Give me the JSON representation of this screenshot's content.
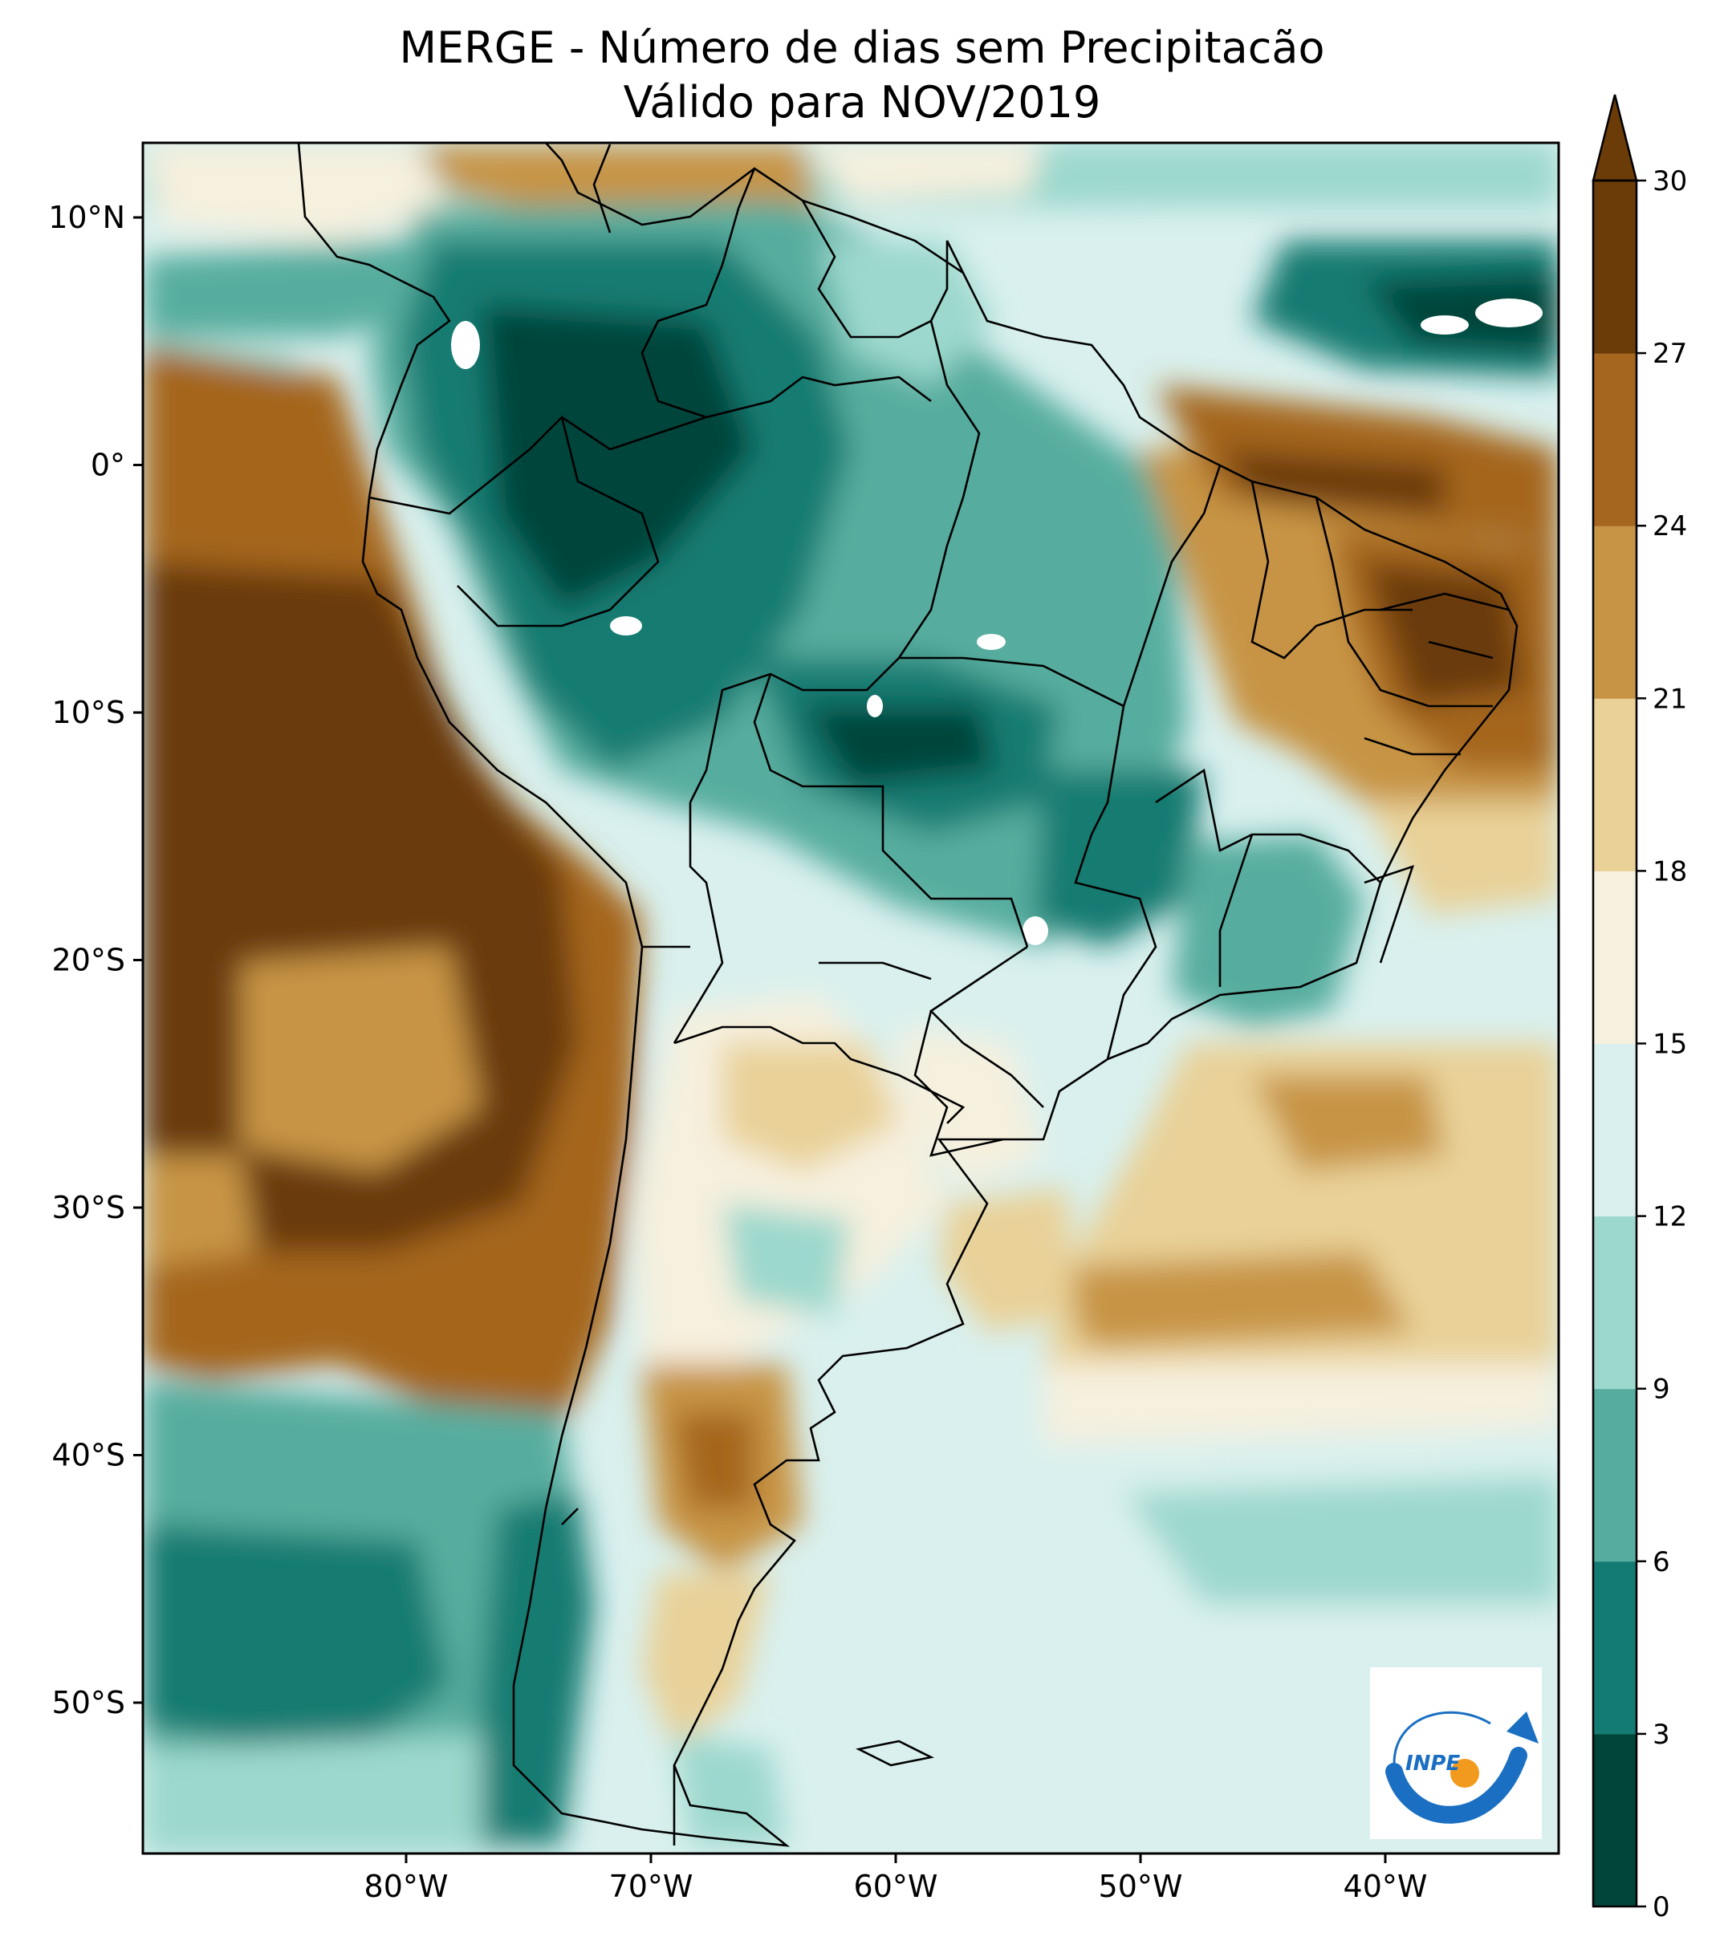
{
  "title": {
    "line1": "MERGE - Número de dias sem Precipitacão",
    "line2": "Válido para NOV/2019"
  },
  "map": {
    "lat_ticks": [
      "10°N",
      "0°",
      "10°S",
      "20°S",
      "30°S",
      "40°S",
      "50°S"
    ],
    "lon_ticks": [
      "80°W",
      "70°W",
      "60°W",
      "50°W",
      "40°W"
    ],
    "colorbar": {
      "levels": [
        "0",
        "3",
        "6",
        "9",
        "12",
        "15",
        "18",
        "21",
        "24",
        "27",
        "30"
      ],
      "colors": [
        "#01453a",
        "#147b72",
        "#56ad9f",
        "#9cd8cd",
        "#d9f0ee",
        "#f6f0de",
        "#e9d198",
        "#c79445",
        "#a5661f",
        "#6b3b08"
      ],
      "extend": "max"
    }
  },
  "logo": {
    "text": "INPE",
    "blue": "#1a6fc2",
    "orange": "#f29a1e"
  }
}
